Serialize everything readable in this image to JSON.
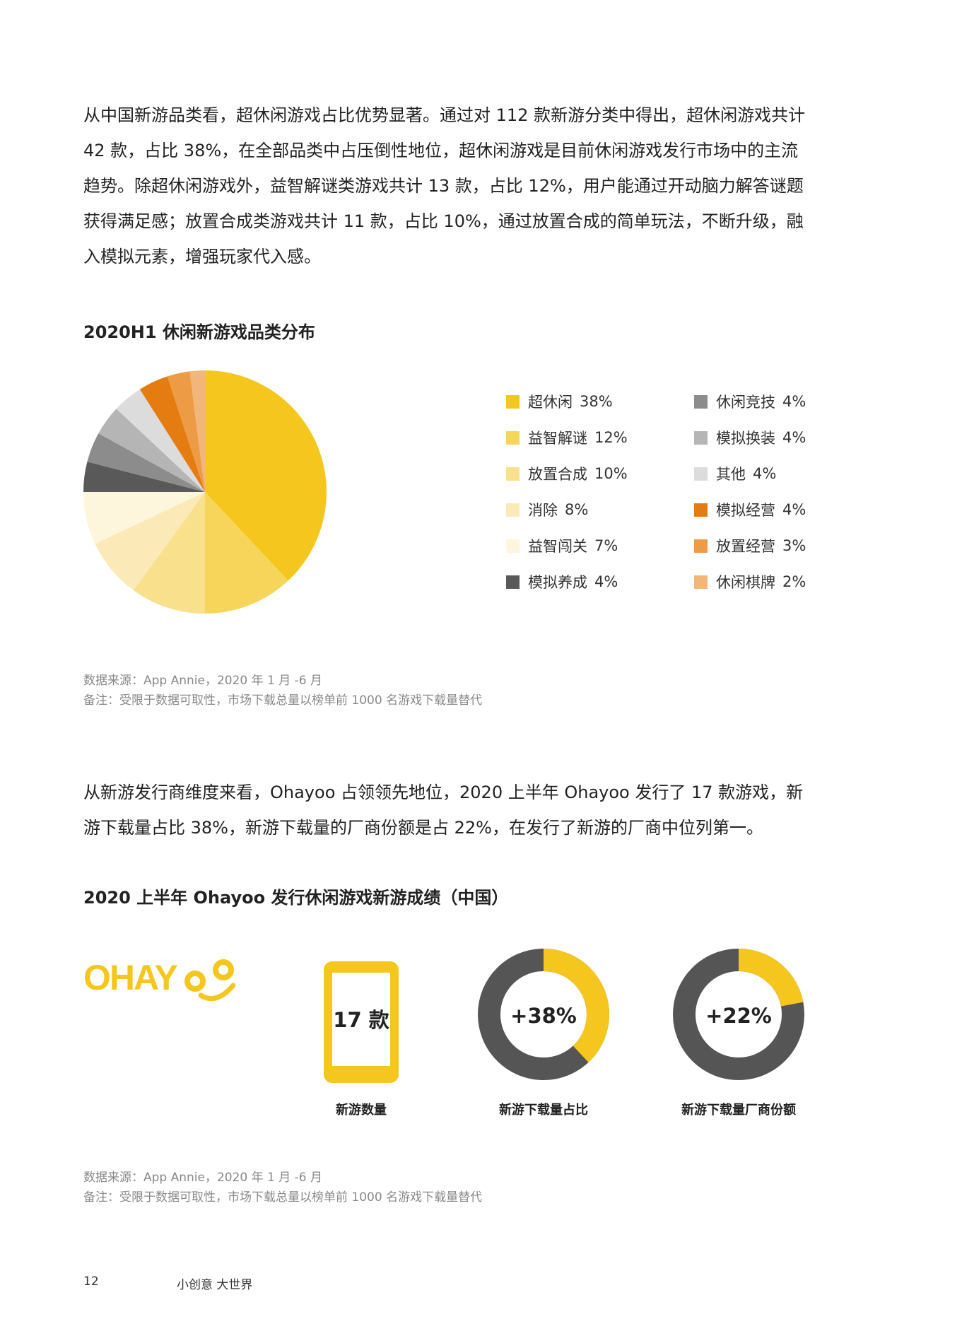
{
  "paragraph1": "从中国新游品类看，超休闲游戏占比优势显著。通过对 112 款新游分类中得出，超休闲游戏共计 42 款，占比 38%，在全部品类中占压倒性地位，超休闲游戏是目前休闲游戏发行市场中的主流趋势。除超休闲游戏外，益智解谜类游戏共计 13 款，占比 12%，用户能通过开动脑力解答谜题获得满足感；放置合成类游戏共计 11 款，占比 10%，通过放置合成的简单玩法，不断升级，融入模拟元素，增强玩家代入感。",
  "chart1_title": "2020H1 休闲新游戏品类分布",
  "chart_data": [
    {
      "type": "pie",
      "title": "2020H1 休闲新游戏品类分布",
      "unit": "%",
      "legend_placement": "right",
      "slices": [
        {
          "label": "超休闲",
          "value": 38,
          "pct_label": "38%",
          "color": "#F5C71E"
        },
        {
          "label": "益智解谜",
          "value": 12,
          "pct_label": "12%",
          "color": "#F7D55A"
        },
        {
          "label": "放置合成",
          "value": 10,
          "pct_label": "10%",
          "color": "#F9E08C"
        },
        {
          "label": "消除",
          "value": 8,
          "pct_label": "8%",
          "color": "#FBEAB8"
        },
        {
          "label": "益智闯关",
          "value": 7,
          "pct_label": "7%",
          "color": "#FDF5DC"
        },
        {
          "label": "模拟养成",
          "value": 4,
          "pct_label": "4%",
          "color": "#595959"
        },
        {
          "label": "休闲竞技",
          "value": 4,
          "pct_label": "4%",
          "color": "#8C8C8C"
        },
        {
          "label": "模拟换装",
          "value": 4,
          "pct_label": "4%",
          "color": "#B5B5B5"
        },
        {
          "label": "其他",
          "value": 4,
          "pct_label": "4%",
          "color": "#DCDCDC"
        },
        {
          "label": "模拟经营",
          "value": 4,
          "pct_label": "4%",
          "color": "#E57C12"
        },
        {
          "label": "放置经营",
          "value": 3,
          "pct_label": "3%",
          "color": "#EE9B45"
        },
        {
          "label": "休闲棋牌",
          "value": 2,
          "pct_label": "2%",
          "color": "#F2B57A"
        }
      ]
    },
    {
      "type": "donut",
      "center_label": "+38%",
      "caption": "新游下载量占比",
      "value": 38,
      "colors": {
        "value": "#F5C71E",
        "rest": "#555555"
      }
    },
    {
      "type": "donut",
      "center_label": "+22%",
      "caption": "新游下载量厂商份额",
      "value": 22,
      "colors": {
        "value": "#F5C71E",
        "rest": "#555555"
      }
    }
  ],
  "notes1": {
    "source": "数据来源：App Annie，2020 年 1 月 -6 月",
    "remark": "备注：受限于数据可取性，市场下载总量以榜单前 1000 名游戏下载量替代"
  },
  "paragraph2": "从新游发行商维度来看，Ohayoo 占领领先地位，2020 上半年 Ohayoo 发行了 17 款游戏，新游下载量占比 38%，新游下载量的厂商份额是占 22%，在发行了新游的厂商中位列第一。",
  "chart2_title": "2020 上半年 Ohayoo 发行休闲游戏新游成绩（中国）",
  "logo_text": "OHAYOO",
  "kpis": {
    "count_value": "17 款",
    "count_label": "新游数量"
  },
  "notes2": {
    "source": "数据来源：App Annie，2020 年 1 月 -6 月",
    "remark": "备注：受限于数据可取性，市场下载总量以榜单前 1000 名游戏下载量替代"
  },
  "footer": {
    "page_number": "12",
    "slogan": "小创意 大世界"
  },
  "brand_color": "#F5C71E",
  "dark_color": "#555555"
}
